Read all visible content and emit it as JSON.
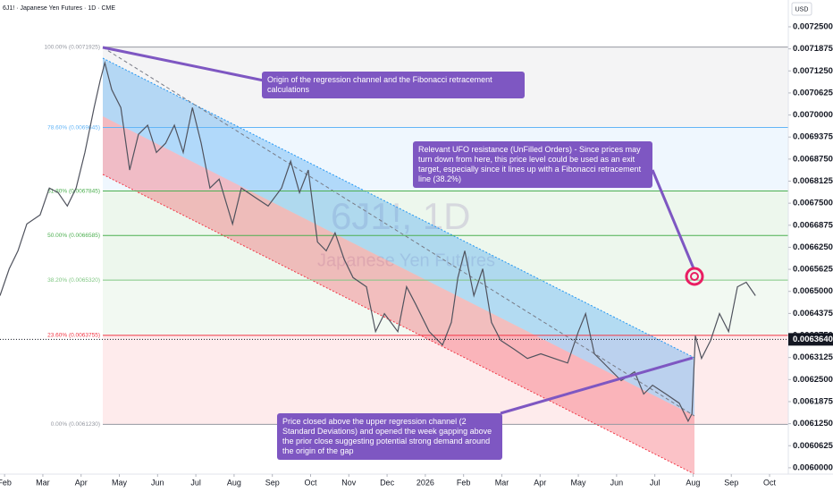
{
  "chart_data": {
    "type": "line",
    "header": "6J1! · Japanese Yen Futures · 1D · CME",
    "currency": "USD",
    "watermark": [
      "6J1!, 1D",
      "Japanese Yen Futures"
    ],
    "color": "#50535e",
    "x": [
      -0.12,
      0.12,
      0.35,
      0.58,
      0.93,
      1.17,
      1.4,
      1.64,
      1.87,
      2.1,
      2.34,
      2.5,
      2.62,
      2.8,
      3.04,
      3.27,
      3.5,
      3.74,
      3.97,
      4.21,
      4.44,
      4.67,
      4.91,
      5.14,
      5.37,
      5.61,
      5.96,
      6.19,
      6.54,
      6.89,
      7.24,
      7.48,
      7.71,
      7.94,
      8.18,
      8.41,
      8.64,
      8.88,
      9.11,
      9.46,
      9.7,
      9.93,
      10.28,
      10.51,
      10.75,
      11.1,
      11.45,
      11.68,
      11.85,
      12.03,
      12.27,
      12.5,
      12.73,
      12.97,
      13.32,
      13.67,
      14.02,
      14.37,
      14.72,
      15.0,
      15.19,
      15.42,
      15.77,
      16.12,
      16.47,
      16.71,
      16.94,
      17.29,
      17.64,
      17.87,
      17.97,
      18.06,
      18.22,
      18.46,
      18.69,
      18.93,
      19.16,
      19.39,
      19.63
    ],
    "values": [
      0.006488,
      0.006564,
      0.006615,
      0.006691,
      0.006717,
      0.006793,
      0.00678,
      0.006742,
      0.006793,
      0.006894,
      0.007021,
      0.007098,
      0.007148,
      0.007072,
      0.007021,
      0.006844,
      0.006945,
      0.006971,
      0.006894,
      0.00692,
      0.006971,
      0.006894,
      0.007021,
      0.00692,
      0.006793,
      0.006818,
      0.006691,
      0.006793,
      0.006767,
      0.006742,
      0.006793,
      0.006869,
      0.00678,
      0.006844,
      0.00664,
      0.006615,
      0.006666,
      0.00659,
      0.006539,
      0.006513,
      0.006386,
      0.006437,
      0.006386,
      0.006513,
      0.006463,
      0.006386,
      0.006348,
      0.006412,
      0.006539,
      0.006615,
      0.006488,
      0.006564,
      0.006412,
      0.006361,
      0.006336,
      0.00631,
      0.006323,
      0.00631,
      0.006297,
      0.006386,
      0.006437,
      0.006323,
      0.006285,
      0.006247,
      0.006272,
      0.006209,
      0.006234,
      0.006209,
      0.006183,
      0.006132,
      0.006153,
      0.006374,
      0.00631,
      0.006361,
      0.006437,
      0.006386,
      0.006513,
      0.006526,
      0.006488
    ],
    "xlim": [
      -0.12,
      20.49
    ],
    "xticks": [
      {
        "value": 0,
        "label": "Feb"
      },
      {
        "value": 1,
        "label": "Mar"
      },
      {
        "value": 2,
        "label": "Apr"
      },
      {
        "value": 3,
        "label": "May"
      },
      {
        "value": 4,
        "label": "Jun"
      },
      {
        "value": 5,
        "label": "Jul"
      },
      {
        "value": 6,
        "label": "Aug"
      },
      {
        "value": 7,
        "label": "Sep"
      },
      {
        "value": 8,
        "label": "Oct"
      },
      {
        "value": 9,
        "label": "Nov"
      },
      {
        "value": 10,
        "label": "Dec"
      },
      {
        "value": 11,
        "label": "2026"
      },
      {
        "value": 12,
        "label": "Feb"
      },
      {
        "value": 13,
        "label": "Mar"
      },
      {
        "value": 14,
        "label": "Apr"
      },
      {
        "value": 15,
        "label": "May"
      },
      {
        "value": 16,
        "label": "Jun"
      },
      {
        "value": 17,
        "label": "Jul"
      },
      {
        "value": 18,
        "label": "Aug"
      },
      {
        "value": 19,
        "label": "Sep"
      },
      {
        "value": 20,
        "label": "Oct"
      }
    ],
    "ylim": [
      0.005982,
      0.007326
    ],
    "yticks": [
      {
        "value": 0.00725,
        "label": "0.0072500"
      },
      {
        "value": 0.0071875,
        "label": "0.0071875"
      },
      {
        "value": 0.007125,
        "label": "0.0071250"
      },
      {
        "value": 0.0070625,
        "label": "0.0070625"
      },
      {
        "value": 0.007,
        "label": "0.0070000"
      },
      {
        "value": 0.0069375,
        "label": "0.0069375"
      },
      {
        "value": 0.006875,
        "label": "0.0068750"
      },
      {
        "value": 0.0068125,
        "label": "0.0068125"
      },
      {
        "value": 0.00675,
        "label": "0.0067500"
      },
      {
        "value": 0.0066875,
        "label": "0.0066875"
      },
      {
        "value": 0.006625,
        "label": "0.0066250"
      },
      {
        "value": 0.0065625,
        "label": "0.0065625"
      },
      {
        "value": 0.0065,
        "label": "0.0065000"
      },
      {
        "value": 0.0064375,
        "label": "0.0064375"
      },
      {
        "value": 0.006375,
        "label": "0.0063750"
      },
      {
        "value": 0.0063125,
        "label": "0.0063125"
      },
      {
        "value": 0.00625,
        "label": "0.0062500"
      },
      {
        "value": 0.0061875,
        "label": "0.0061875"
      },
      {
        "value": 0.006125,
        "label": "0.0061250"
      },
      {
        "value": 0.0060625,
        "label": "0.0060625"
      },
      {
        "value": 0.006,
        "label": "0.0060000"
      }
    ],
    "last_price": {
      "value": 0.006364,
      "label": "0.0063640"
    },
    "fib_levels": [
      {
        "value": 0.0071925,
        "label": "100.00% (0.0071925)",
        "color": "#9598a1"
      },
      {
        "value": 0.0069645,
        "label": "78.60% (0.0069645)",
        "color": "#64b5f6"
      },
      {
        "value": 0.0067845,
        "label": "61.80% (0.0067845)",
        "color": "#4caf50"
      },
      {
        "value": 0.0066585,
        "label": "50.00% (0.0066585)",
        "color": "#4caf50"
      },
      {
        "value": 0.006532,
        "label": "38.20% (0.0065320)",
        "color": "#81c784"
      },
      {
        "value": 0.0063755,
        "label": "23.60% (0.0063755)",
        "color": "#f23645"
      },
      {
        "value": 0.006123,
        "label": "0.00% (0.0061230)",
        "color": "#9598a1"
      }
    ],
    "annotations": [
      "Origin of the regression channel and the Fibonacci retracement calculations",
      "Relevant UFO resistance (UnFilled Orders) - Since prices may turn down from here, this price level could be used as an exit target, especially since it lines up with a Fibonacci retracement line (38.2%)",
      "Price closed above the upper regression channel (2 Standard Deviations) and opened the week gapping above the prior close suggesting potential strong demand around the origin of the gap"
    ]
  }
}
